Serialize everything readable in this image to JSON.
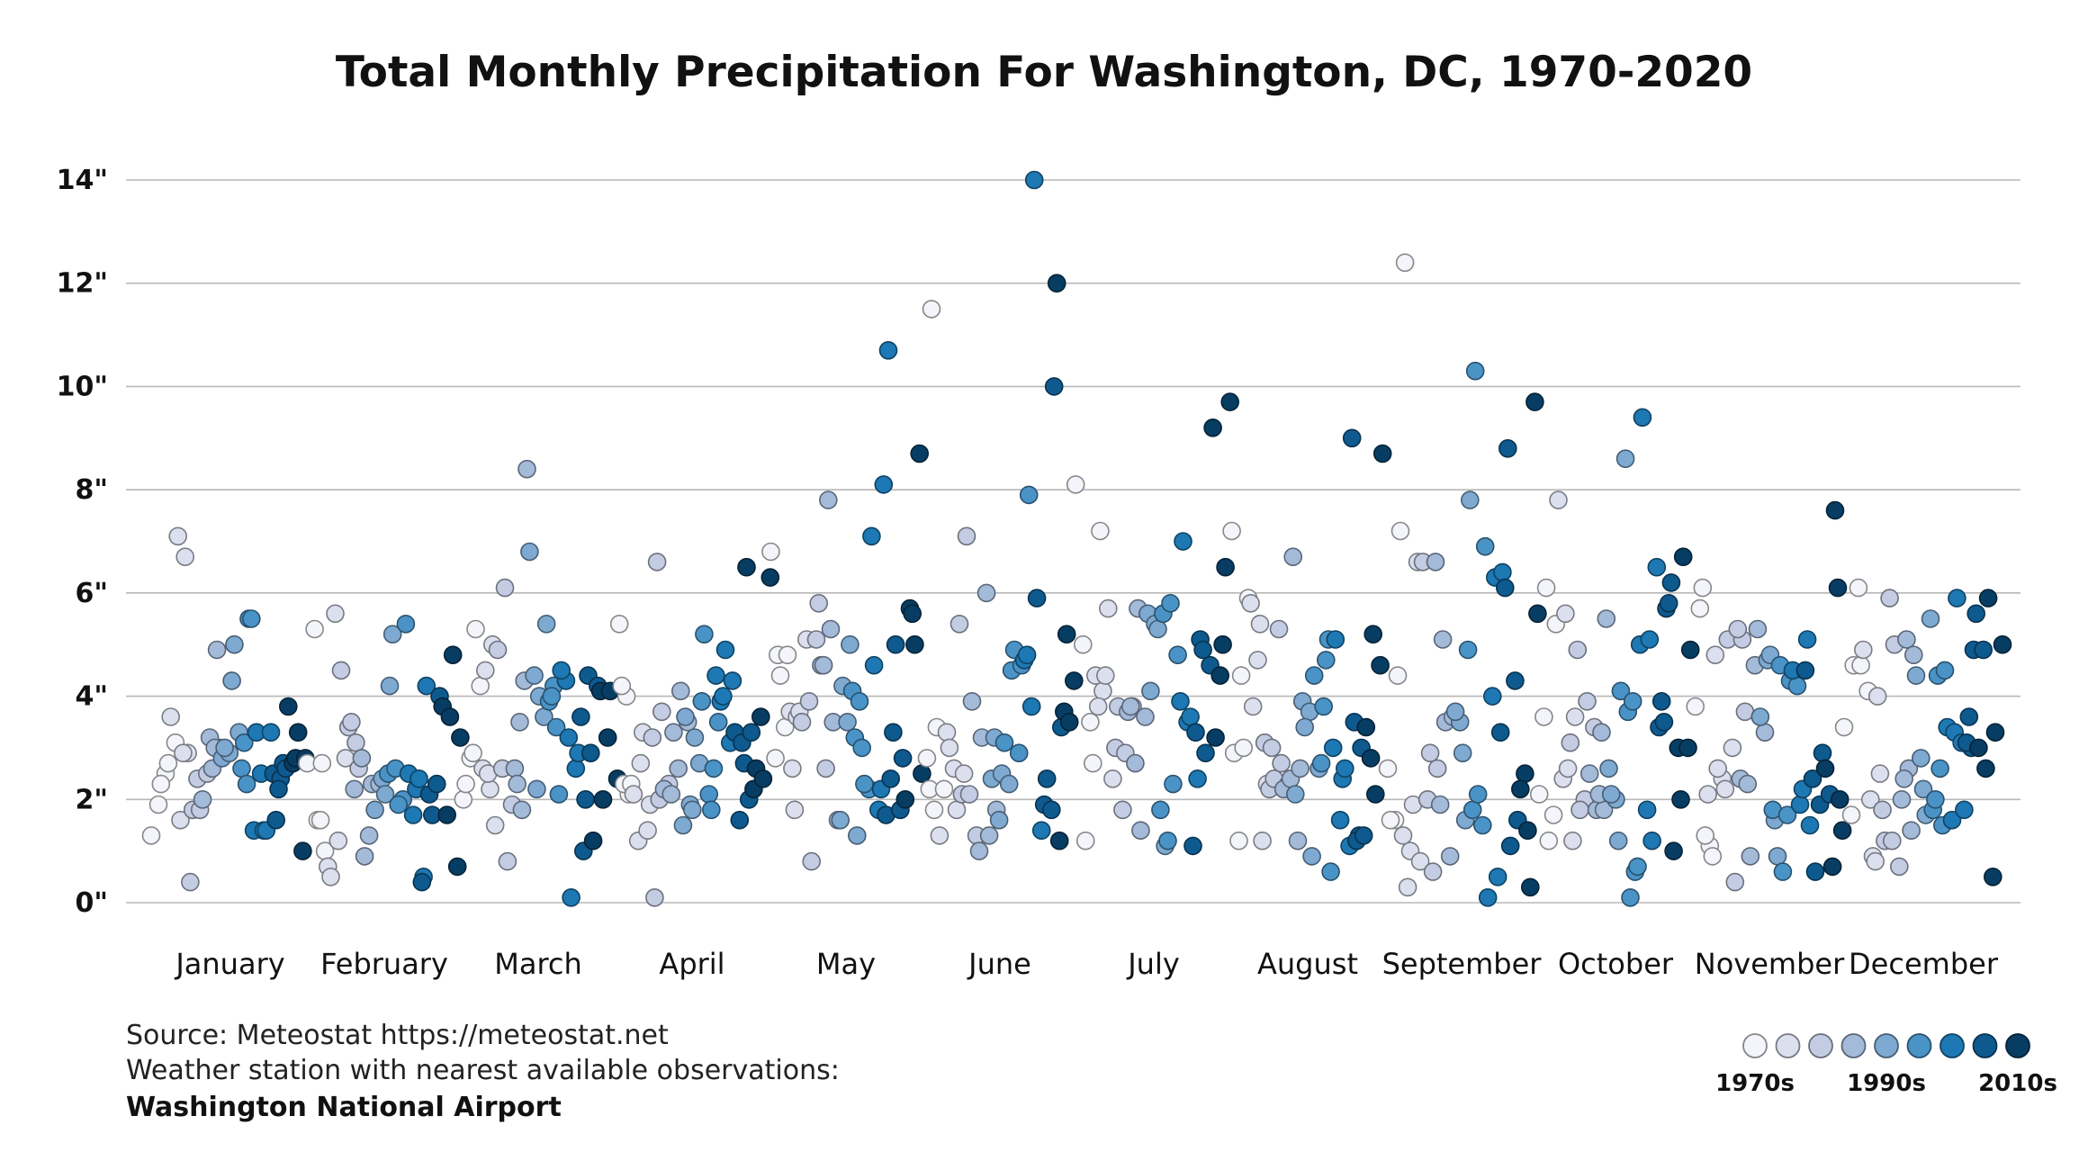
{
  "chart_data": {
    "type": "scatter",
    "title": "Total Monthly Precipitation For Washington, DC, 1970-2020",
    "ylim": [
      0,
      14
    ],
    "y_ticks": [
      "0\"",
      "2\"",
      "4\"",
      "6\"",
      "8\"",
      "10\"",
      "12\"",
      "14\""
    ],
    "y_tick_values": [
      0,
      2,
      4,
      6,
      8,
      10,
      12,
      14
    ],
    "categories": [
      "January",
      "February",
      "March",
      "April",
      "May",
      "June",
      "July",
      "August",
      "September",
      "October",
      "November",
      "December"
    ],
    "grid": true,
    "decade_colors": [
      "#f4f5fa",
      "#dcdfee",
      "#c3cce2",
      "#a3bad8",
      "#7ea9d1",
      "#4a93c6",
      "#1d78b3",
      "#0e5a8f",
      "#083d63"
    ],
    "series": [
      {
        "month": "January",
        "values": [
          1.3,
          1.9,
          2.5,
          2.3,
          2.7,
          3.1,
          3.6,
          7.1,
          6.7,
          1.6,
          2.9,
          2.9,
          0.4,
          2.4,
          1.8,
          1.8,
          2.5,
          2.0,
          3.2,
          4.9,
          2.6,
          3.0,
          3.0,
          2.8,
          2.9,
          3.0,
          4.3,
          3.3,
          5.0,
          2.6,
          5.5,
          3.1,
          5.5,
          2.3,
          1.4,
          2.5,
          3.3,
          1.4,
          3.3,
          1.4,
          2.5,
          2.4,
          1.6,
          2.7,
          2.2,
          2.6,
          2.7,
          3.8,
          2.8,
          1.0,
          3.3,
          2.8
        ]
      },
      {
        "month": "February",
        "values": [
          2.7,
          5.3,
          2.7,
          1.6,
          1.0,
          1.6,
          0.7,
          5.6,
          0.5,
          1.2,
          2.8,
          4.5,
          3.4,
          3.1,
          3.5,
          2.6,
          2.2,
          2.8,
          1.3,
          0.9,
          2.3,
          2.3,
          1.8,
          2.4,
          4.2,
          2.1,
          5.2,
          2.5,
          2.6,
          2.0,
          1.9,
          5.4,
          1.7,
          2.5,
          2.2,
          0.5,
          2.4,
          4.2,
          0.4,
          2.1,
          2.3,
          1.7,
          4.0,
          1.7,
          3.8,
          3.6,
          0.7,
          4.8,
          3.2
        ]
      },
      {
        "month": "March",
        "values": [
          2.0,
          2.8,
          2.3,
          2.9,
          4.2,
          5.3,
          2.6,
          2.2,
          4.5,
          5.0,
          2.5,
          1.5,
          2.6,
          4.9,
          6.1,
          1.9,
          0.8,
          2.6,
          1.8,
          2.3,
          4.3,
          3.5,
          8.4,
          4.4,
          6.8,
          2.2,
          3.6,
          4.0,
          5.4,
          4.2,
          3.9,
          3.4,
          4.0,
          2.1,
          4.3,
          4.5,
          3.2,
          2.6,
          0.1,
          2.9,
          2.0,
          3.6,
          4.4,
          1.0,
          2.9,
          4.2,
          1.2,
          4.1,
          3.2,
          2.0,
          4.1,
          2.4
        ]
      },
      {
        "month": "April",
        "values": [
          5.4,
          4.0,
          4.2,
          2.1,
          2.3,
          2.3,
          1.2,
          2.1,
          2.7,
          1.4,
          3.3,
          1.9,
          6.6,
          3.2,
          2.0,
          0.1,
          3.7,
          2.3,
          2.2,
          2.1,
          2.6,
          3.3,
          4.1,
          3.5,
          1.5,
          1.9,
          3.6,
          1.8,
          2.7,
          3.2,
          3.9,
          2.1,
          5.2,
          1.8,
          3.5,
          2.6,
          3.9,
          4.4,
          4.0,
          3.1,
          4.9,
          4.3,
          1.6,
          3.3,
          3.1,
          2.0,
          2.7,
          3.3,
          6.5,
          2.2,
          3.6,
          2.6,
          2.4,
          6.3
        ]
      },
      {
        "month": "May",
        "values": [
          2.8,
          6.8,
          4.8,
          3.4,
          4.4,
          4.8,
          1.8,
          3.7,
          3.6,
          2.6,
          3.7,
          5.1,
          3.5,
          3.9,
          5.1,
          0.8,
          5.8,
          2.6,
          4.6,
          7.8,
          4.6,
          5.3,
          1.6,
          3.5,
          1.6,
          3.5,
          4.2,
          5.0,
          1.3,
          4.1,
          3.9,
          3.2,
          3.0,
          2.2,
          2.3,
          7.1,
          1.8,
          4.6,
          2.2,
          10.7,
          8.1,
          2.4,
          1.7,
          3.3,
          1.8,
          5.0,
          2.8,
          5.7,
          2.0,
          5.6,
          8.7,
          5.0,
          2.5
        ]
      },
      {
        "month": "June",
        "values": [
          11.5,
          2.8,
          1.8,
          2.2,
          3.4,
          2.2,
          1.3,
          3.3,
          2.6,
          3.0,
          1.8,
          2.5,
          5.4,
          7.1,
          2.1,
          2.1,
          1.3,
          3.9,
          1.0,
          6.0,
          3.2,
          1.3,
          1.8,
          2.4,
          1.6,
          3.2,
          2.5,
          2.3,
          3.1,
          4.5,
          2.9,
          4.9,
          4.6,
          7.9,
          4.7,
          3.8,
          4.8,
          14.0,
          1.4,
          5.9,
          1.9,
          1.8,
          2.4,
          10.0,
          3.4,
          12.0,
          3.7,
          1.2,
          5.2,
          4.3,
          3.5
        ]
      },
      {
        "month": "July",
        "values": [
          8.1,
          5.0,
          3.5,
          1.2,
          2.7,
          7.2,
          4.4,
          4.1,
          3.8,
          4.4,
          2.4,
          5.7,
          3.0,
          1.8,
          3.8,
          2.9,
          3.8,
          3.7,
          2.7,
          3.8,
          5.7,
          3.6,
          1.4,
          5.6,
          5.4,
          4.1,
          5.3,
          1.1,
          1.8,
          1.2,
          5.6,
          5.8,
          4.8,
          2.3,
          3.9,
          3.5,
          7.0,
          3.6,
          2.4,
          1.1,
          5.1,
          3.3,
          4.9,
          4.6,
          2.9,
          9.2,
          4.4,
          3.2,
          5.0,
          9.7,
          6.5
        ]
      },
      {
        "month": "August",
        "values": [
          7.2,
          1.2,
          2.9,
          4.4,
          5.9,
          3.0,
          5.8,
          4.7,
          3.8,
          5.4,
          2.3,
          1.2,
          2.2,
          3.1,
          3.0,
          5.3,
          2.4,
          2.7,
          2.3,
          2.2,
          2.4,
          1.2,
          6.7,
          2.6,
          2.1,
          3.9,
          3.7,
          3.4,
          0.9,
          2.6,
          4.4,
          2.7,
          5.1,
          3.8,
          0.6,
          4.7,
          3.0,
          1.6,
          5.1,
          2.4,
          1.1,
          2.6,
          9.0,
          1.3,
          3.5,
          3.0,
          1.2,
          1.3,
          2.8,
          3.4,
          5.2,
          4.6,
          2.1,
          8.7
        ]
      },
      {
        "month": "September",
        "values": [
          2.6,
          1.6,
          1.6,
          4.4,
          12.4,
          7.2,
          0.3,
          1.3,
          1.0,
          6.6,
          1.9,
          0.8,
          2.0,
          6.6,
          2.9,
          2.6,
          0.6,
          1.9,
          6.6,
          5.1,
          0.9,
          3.5,
          3.6,
          3.5,
          3.7,
          2.9,
          7.8,
          1.6,
          1.8,
          4.9,
          10.3,
          1.5,
          2.1,
          6.9,
          4.0,
          0.1,
          6.3,
          6.4,
          0.5,
          6.1,
          3.3,
          8.8,
          4.3,
          1.1,
          1.6,
          2.5,
          2.2,
          1.4,
          9.7,
          0.3,
          5.6
        ]
      },
      {
        "month": "October",
        "values": [
          3.6,
          2.1,
          6.1,
          1.7,
          1.2,
          5.4,
          2.4,
          7.8,
          5.6,
          1.2,
          2.6,
          3.6,
          3.1,
          4.9,
          2.0,
          1.8,
          3.9,
          3.4,
          2.5,
          1.8,
          1.8,
          2.1,
          5.5,
          3.3,
          2.6,
          2.0,
          2.1,
          1.2,
          8.6,
          4.1,
          3.7,
          0.6,
          0.1,
          0.7,
          3.9,
          5.0,
          1.8,
          9.4,
          5.1,
          6.5,
          1.2,
          3.4,
          5.7,
          3.9,
          5.8,
          3.5,
          6.2,
          3.0,
          1.0,
          2.0,
          3.0,
          6.7,
          4.9
        ]
      },
      {
        "month": "November",
        "values": [
          5.7,
          3.8,
          6.1,
          1.1,
          1.3,
          0.9,
          2.1,
          4.8,
          2.4,
          2.6,
          2.2,
          3.0,
          5.1,
          0.4,
          5.1,
          5.3,
          3.7,
          2.4,
          2.3,
          4.6,
          0.9,
          5.3,
          3.3,
          3.6,
          4.7,
          1.6,
          4.8,
          0.9,
          1.8,
          4.6,
          1.7,
          0.6,
          4.3,
          4.2,
          4.5,
          1.9,
          5.1,
          2.2,
          1.5,
          4.5,
          2.4,
          1.9,
          0.6,
          2.9,
          2.1,
          2.6,
          0.7,
          2.0,
          7.6,
          1.4,
          6.1
        ]
      },
      {
        "month": "December",
        "values": [
          3.4,
          1.7,
          6.1,
          4.6,
          4.6,
          4.1,
          4.9,
          2.0,
          4.0,
          0.9,
          2.5,
          0.8,
          1.8,
          5.9,
          1.2,
          1.2,
          0.7,
          5.0,
          2.0,
          2.6,
          2.4,
          1.4,
          5.1,
          4.8,
          2.8,
          4.4,
          2.2,
          5.5,
          1.7,
          1.8,
          2.6,
          2.0,
          1.5,
          4.4,
          4.5,
          1.6,
          3.4,
          3.3,
          3.1,
          5.9,
          1.8,
          3.0,
          3.1,
          4.9,
          3.6,
          5.6,
          4.9,
          3.0,
          2.6,
          0.5,
          5.9,
          3.3,
          5.0
        ]
      }
    ],
    "legend": {
      "labels": [
        "1970s",
        "1990s",
        "2010s"
      ],
      "placement": "bottom-right"
    }
  },
  "source": {
    "line1": "Source: Meteostat https://meteostat.net",
    "line2": "Weather station with nearest available observations:",
    "line3": "Washington National Airport"
  }
}
